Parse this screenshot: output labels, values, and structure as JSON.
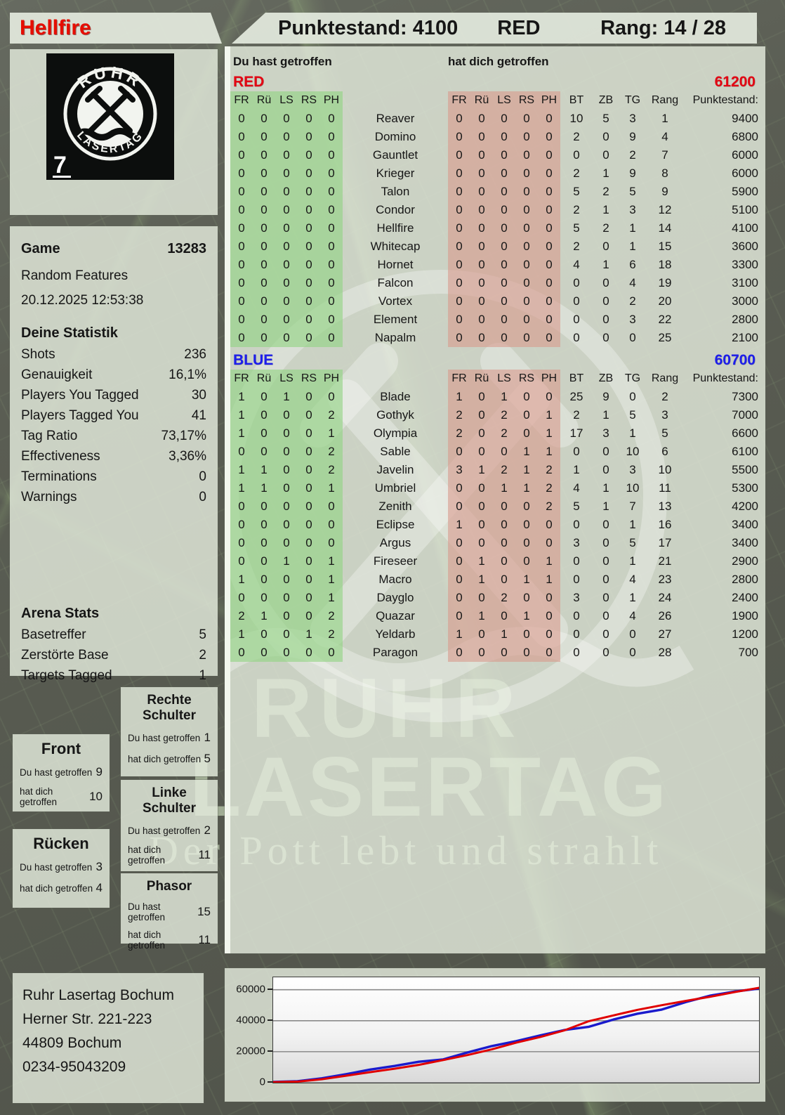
{
  "header": {
    "player": "Hellfire",
    "score_text": "Punktestand: 4100",
    "team": "RED",
    "rank_text": "Rang: 14 / 28"
  },
  "logo": {
    "ring_top": "RUHR",
    "ring_bottom": "LASERTAG",
    "corner": "7"
  },
  "game": {
    "label": "Game",
    "id": "13283",
    "mode": "Random Features",
    "datetime": "20.12.2025 12:53:38"
  },
  "stats": {
    "title": "Deine Statistik",
    "rows": [
      {
        "label": "Shots",
        "value": "236"
      },
      {
        "label": "Genauigkeit",
        "value": "16,1%"
      },
      {
        "label": "Players You Tagged",
        "value": "30"
      },
      {
        "label": "Players Tagged You",
        "value": "41"
      },
      {
        "label": "Tag Ratio",
        "value": "73,17%"
      },
      {
        "label": "Effectiveness",
        "value": "3,36%"
      },
      {
        "label": "Terminations",
        "value": "0"
      },
      {
        "label": "Warnings",
        "value": "0"
      }
    ]
  },
  "arena": {
    "title": "Arena Stats",
    "rows": [
      {
        "label": "Basetreffer",
        "value": "5"
      },
      {
        "label": "Zerstörte Base",
        "value": "2"
      },
      {
        "label": "Targets Tagged",
        "value": "1"
      }
    ]
  },
  "labels": {
    "hit": "Du hast getroffen",
    "got": "hat dich getroffen"
  },
  "tables": {
    "hit_header": "Du hast getroffen",
    "got_header": "hat dich getroffen",
    "hit_cols": [
      "FR",
      "Rü",
      "LS",
      "RS",
      "PH"
    ],
    "got_cols": [
      "FR",
      "Rü",
      "LS",
      "RS",
      "PH"
    ],
    "right_cols": [
      "BT",
      "ZB",
      "TG",
      "Rang",
      "Punktestand:"
    ],
    "red": {
      "name": "RED",
      "total": "61200",
      "rows": [
        {
          "name": "Reaver",
          "hit": [
            0,
            0,
            0,
            0,
            0
          ],
          "got": [
            0,
            0,
            0,
            0,
            0
          ],
          "bt": 10,
          "zb": 5,
          "tg": 3,
          "rang": 1,
          "score": 9400
        },
        {
          "name": "Domino",
          "hit": [
            0,
            0,
            0,
            0,
            0
          ],
          "got": [
            0,
            0,
            0,
            0,
            0
          ],
          "bt": 2,
          "zb": 0,
          "tg": 9,
          "rang": 4,
          "score": 6800
        },
        {
          "name": "Gauntlet",
          "hit": [
            0,
            0,
            0,
            0,
            0
          ],
          "got": [
            0,
            0,
            0,
            0,
            0
          ],
          "bt": 0,
          "zb": 0,
          "tg": 2,
          "rang": 7,
          "score": 6000
        },
        {
          "name": "Krieger",
          "hit": [
            0,
            0,
            0,
            0,
            0
          ],
          "got": [
            0,
            0,
            0,
            0,
            0
          ],
          "bt": 2,
          "zb": 1,
          "tg": 9,
          "rang": 8,
          "score": 6000
        },
        {
          "name": "Talon",
          "hit": [
            0,
            0,
            0,
            0,
            0
          ],
          "got": [
            0,
            0,
            0,
            0,
            0
          ],
          "bt": 5,
          "zb": 2,
          "tg": 5,
          "rang": 9,
          "score": 5900
        },
        {
          "name": "Condor",
          "hit": [
            0,
            0,
            0,
            0,
            0
          ],
          "got": [
            0,
            0,
            0,
            0,
            0
          ],
          "bt": 2,
          "zb": 1,
          "tg": 3,
          "rang": 12,
          "score": 5100
        },
        {
          "name": "Hellfire",
          "hit": [
            0,
            0,
            0,
            0,
            0
          ],
          "got": [
            0,
            0,
            0,
            0,
            0
          ],
          "bt": 5,
          "zb": 2,
          "tg": 1,
          "rang": 14,
          "score": 4100
        },
        {
          "name": "Whitecap",
          "hit": [
            0,
            0,
            0,
            0,
            0
          ],
          "got": [
            0,
            0,
            0,
            0,
            0
          ],
          "bt": 2,
          "zb": 0,
          "tg": 1,
          "rang": 15,
          "score": 3600
        },
        {
          "name": "Hornet",
          "hit": [
            0,
            0,
            0,
            0,
            0
          ],
          "got": [
            0,
            0,
            0,
            0,
            0
          ],
          "bt": 4,
          "zb": 1,
          "tg": 6,
          "rang": 18,
          "score": 3300
        },
        {
          "name": "Falcon",
          "hit": [
            0,
            0,
            0,
            0,
            0
          ],
          "got": [
            0,
            0,
            0,
            0,
            0
          ],
          "bt": 0,
          "zb": 0,
          "tg": 4,
          "rang": 19,
          "score": 3100
        },
        {
          "name": "Vortex",
          "hit": [
            0,
            0,
            0,
            0,
            0
          ],
          "got": [
            0,
            0,
            0,
            0,
            0
          ],
          "bt": 0,
          "zb": 0,
          "tg": 2,
          "rang": 20,
          "score": 3000
        },
        {
          "name": "Element",
          "hit": [
            0,
            0,
            0,
            0,
            0
          ],
          "got": [
            0,
            0,
            0,
            0,
            0
          ],
          "bt": 0,
          "zb": 0,
          "tg": 3,
          "rang": 22,
          "score": 2800
        },
        {
          "name": "Napalm",
          "hit": [
            0,
            0,
            0,
            0,
            0
          ],
          "got": [
            0,
            0,
            0,
            0,
            0
          ],
          "bt": 0,
          "zb": 0,
          "tg": 0,
          "rang": 25,
          "score": 2100
        }
      ]
    },
    "blue": {
      "name": "BLUE",
      "total": "60700",
      "rows": [
        {
          "name": "Blade",
          "hit": [
            1,
            0,
            1,
            0,
            0
          ],
          "got": [
            1,
            0,
            1,
            0,
            0
          ],
          "bt": 25,
          "zb": 9,
          "tg": 0,
          "rang": 2,
          "score": 7300
        },
        {
          "name": "Gothyk",
          "hit": [
            1,
            0,
            0,
            0,
            2
          ],
          "got": [
            2,
            0,
            2,
            0,
            1
          ],
          "bt": 2,
          "zb": 1,
          "tg": 5,
          "rang": 3,
          "score": 7000
        },
        {
          "name": "Olympia",
          "hit": [
            1,
            0,
            0,
            0,
            1
          ],
          "got": [
            2,
            0,
            2,
            0,
            1
          ],
          "bt": 17,
          "zb": 3,
          "tg": 1,
          "rang": 5,
          "score": 6600
        },
        {
          "name": "Sable",
          "hit": [
            0,
            0,
            0,
            0,
            2
          ],
          "got": [
            0,
            0,
            0,
            1,
            1
          ],
          "bt": 0,
          "zb": 0,
          "tg": 10,
          "rang": 6,
          "score": 6100
        },
        {
          "name": "Javelin",
          "hit": [
            1,
            1,
            0,
            0,
            2
          ],
          "got": [
            3,
            1,
            2,
            1,
            2
          ],
          "bt": 1,
          "zb": 0,
          "tg": 3,
          "rang": 10,
          "score": 5500
        },
        {
          "name": "Umbriel",
          "hit": [
            1,
            1,
            0,
            0,
            1
          ],
          "got": [
            0,
            0,
            1,
            1,
            2
          ],
          "bt": 4,
          "zb": 1,
          "tg": 10,
          "rang": 11,
          "score": 5300
        },
        {
          "name": "Zenith",
          "hit": [
            0,
            0,
            0,
            0,
            0
          ],
          "got": [
            0,
            0,
            0,
            0,
            2
          ],
          "bt": 5,
          "zb": 1,
          "tg": 7,
          "rang": 13,
          "score": 4200
        },
        {
          "name": "Eclipse",
          "hit": [
            0,
            0,
            0,
            0,
            0
          ],
          "got": [
            1,
            0,
            0,
            0,
            0
          ],
          "bt": 0,
          "zb": 0,
          "tg": 1,
          "rang": 16,
          "score": 3400
        },
        {
          "name": "Argus",
          "hit": [
            0,
            0,
            0,
            0,
            0
          ],
          "got": [
            0,
            0,
            0,
            0,
            0
          ],
          "bt": 3,
          "zb": 0,
          "tg": 5,
          "rang": 17,
          "score": 3400
        },
        {
          "name": "Fireseer",
          "hit": [
            0,
            0,
            1,
            0,
            1
          ],
          "got": [
            0,
            1,
            0,
            0,
            1
          ],
          "bt": 0,
          "zb": 0,
          "tg": 1,
          "rang": 21,
          "score": 2900
        },
        {
          "name": "Macro",
          "hit": [
            1,
            0,
            0,
            0,
            1
          ],
          "got": [
            0,
            1,
            0,
            1,
            1
          ],
          "bt": 0,
          "zb": 0,
          "tg": 4,
          "rang": 23,
          "score": 2800
        },
        {
          "name": "Dayglo",
          "hit": [
            0,
            0,
            0,
            0,
            1
          ],
          "got": [
            0,
            0,
            2,
            0,
            0
          ],
          "bt": 3,
          "zb": 0,
          "tg": 1,
          "rang": 24,
          "score": 2400
        },
        {
          "name": "Quazar",
          "hit": [
            2,
            1,
            0,
            0,
            2
          ],
          "got": [
            0,
            1,
            0,
            1,
            0
          ],
          "bt": 0,
          "zb": 0,
          "tg": 4,
          "rang": 26,
          "score": 1900
        },
        {
          "name": "Yeldarb",
          "hit": [
            1,
            0,
            0,
            1,
            2
          ],
          "got": [
            1,
            0,
            1,
            0,
            0
          ],
          "bt": 0,
          "zb": 0,
          "tg": 0,
          "rang": 27,
          "score": 1200
        },
        {
          "name": "Paragon",
          "hit": [
            0,
            0,
            0,
            0,
            0
          ],
          "got": [
            0,
            0,
            0,
            0,
            0
          ],
          "bt": 0,
          "zb": 0,
          "tg": 0,
          "rang": 28,
          "score": 700
        }
      ]
    }
  },
  "body_parts": [
    {
      "title": "Rechte Schulter",
      "hit": "1",
      "got": "5"
    },
    {
      "title": "Front",
      "hit": "9",
      "got": "10"
    },
    {
      "title": "Linke Schulter",
      "hit": "2",
      "got": "11"
    },
    {
      "title": "Rücken",
      "hit": "3",
      "got": "4"
    },
    {
      "title": "Phasor",
      "hit": "15",
      "got": "11"
    }
  ],
  "watermark": {
    "line1": "RUHR",
    "line2": "LASERTAG",
    "line3": "Der Pott lebt und strahlt"
  },
  "footer": {
    "line1": "Ruhr Lasertag Bochum",
    "line2": "Herner Str. 221-223",
    "line3": "44809 Bochum",
    "line4": "0234-95043209"
  },
  "accents": {
    "team_red": "#e30613",
    "team_blue": "#1d1deb",
    "hit_bg": "#92d382",
    "got_bg": "#d8998c"
  },
  "chart_data": {
    "type": "line",
    "title": "",
    "xlabel": "",
    "ylabel": "",
    "yticks": [
      0,
      20000,
      40000,
      60000
    ],
    "ylim": [
      0,
      68000
    ],
    "grid": true,
    "legend": "none",
    "x_percent": [
      0,
      5,
      10,
      15,
      20,
      25,
      30,
      35,
      40,
      45,
      50,
      55,
      60,
      65,
      70,
      75,
      80,
      85,
      90,
      95,
      100
    ],
    "series": [
      {
        "name": "RED",
        "color": "#e00000",
        "values": [
          300,
          700,
          2200,
          4500,
          6800,
          9000,
          11500,
          14600,
          17800,
          21500,
          25800,
          29500,
          33800,
          39700,
          43400,
          47000,
          50000,
          52800,
          55500,
          58500,
          61200
        ]
      },
      {
        "name": "BLUE",
        "color": "#1a1acc",
        "values": [
          500,
          900,
          2800,
          5500,
          8500,
          10800,
          13500,
          15000,
          19500,
          23600,
          26800,
          30500,
          34000,
          36100,
          40700,
          44500,
          47200,
          52100,
          56200,
          58800,
          60700
        ]
      }
    ]
  }
}
